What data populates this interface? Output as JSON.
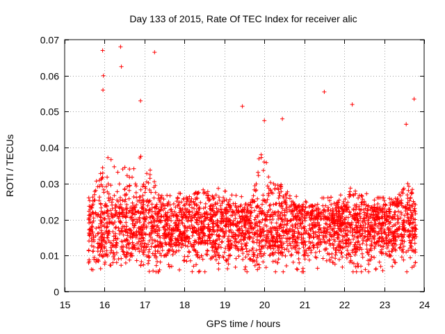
{
  "chart_data": {
    "type": "scatter",
    "title": "Day 133 of 2015, Rate Of TEC Index for receiver alic",
    "xlabel": "GPS time / hours",
    "ylabel": "ROTI / TECUs",
    "xlim": [
      15,
      24
    ],
    "ylim": [
      0,
      0.07
    ],
    "xticks": [
      "15",
      "16",
      "17",
      "18",
      "19",
      "20",
      "21",
      "22",
      "23",
      "24"
    ],
    "yticks": [
      "0",
      "0.01",
      "0.02",
      "0.03",
      "0.04",
      "0.05",
      "0.06",
      "0.07"
    ],
    "grid": true,
    "marker": "+",
    "color": "#ff0000",
    "series": [
      {
        "name": "ROTI",
        "x_range": [
          15.6,
          23.8
        ],
        "typical_range": [
          0.007,
          0.03
        ],
        "outliers": [
          {
            "x": 15.95,
            "y": 0.067
          },
          {
            "x": 15.97,
            "y": 0.06
          },
          {
            "x": 15.96,
            "y": 0.056
          },
          {
            "x": 16.4,
            "y": 0.068
          },
          {
            "x": 16.42,
            "y": 0.0625
          },
          {
            "x": 17.25,
            "y": 0.0665
          },
          {
            "x": 16.9,
            "y": 0.053
          },
          {
            "x": 19.45,
            "y": 0.0515
          },
          {
            "x": 21.5,
            "y": 0.0555
          },
          {
            "x": 22.2,
            "y": 0.052
          },
          {
            "x": 23.75,
            "y": 0.0535
          },
          {
            "x": 23.55,
            "y": 0.0465
          },
          {
            "x": 20.45,
            "y": 0.048
          },
          {
            "x": 20.0,
            "y": 0.0475
          }
        ]
      }
    ]
  }
}
